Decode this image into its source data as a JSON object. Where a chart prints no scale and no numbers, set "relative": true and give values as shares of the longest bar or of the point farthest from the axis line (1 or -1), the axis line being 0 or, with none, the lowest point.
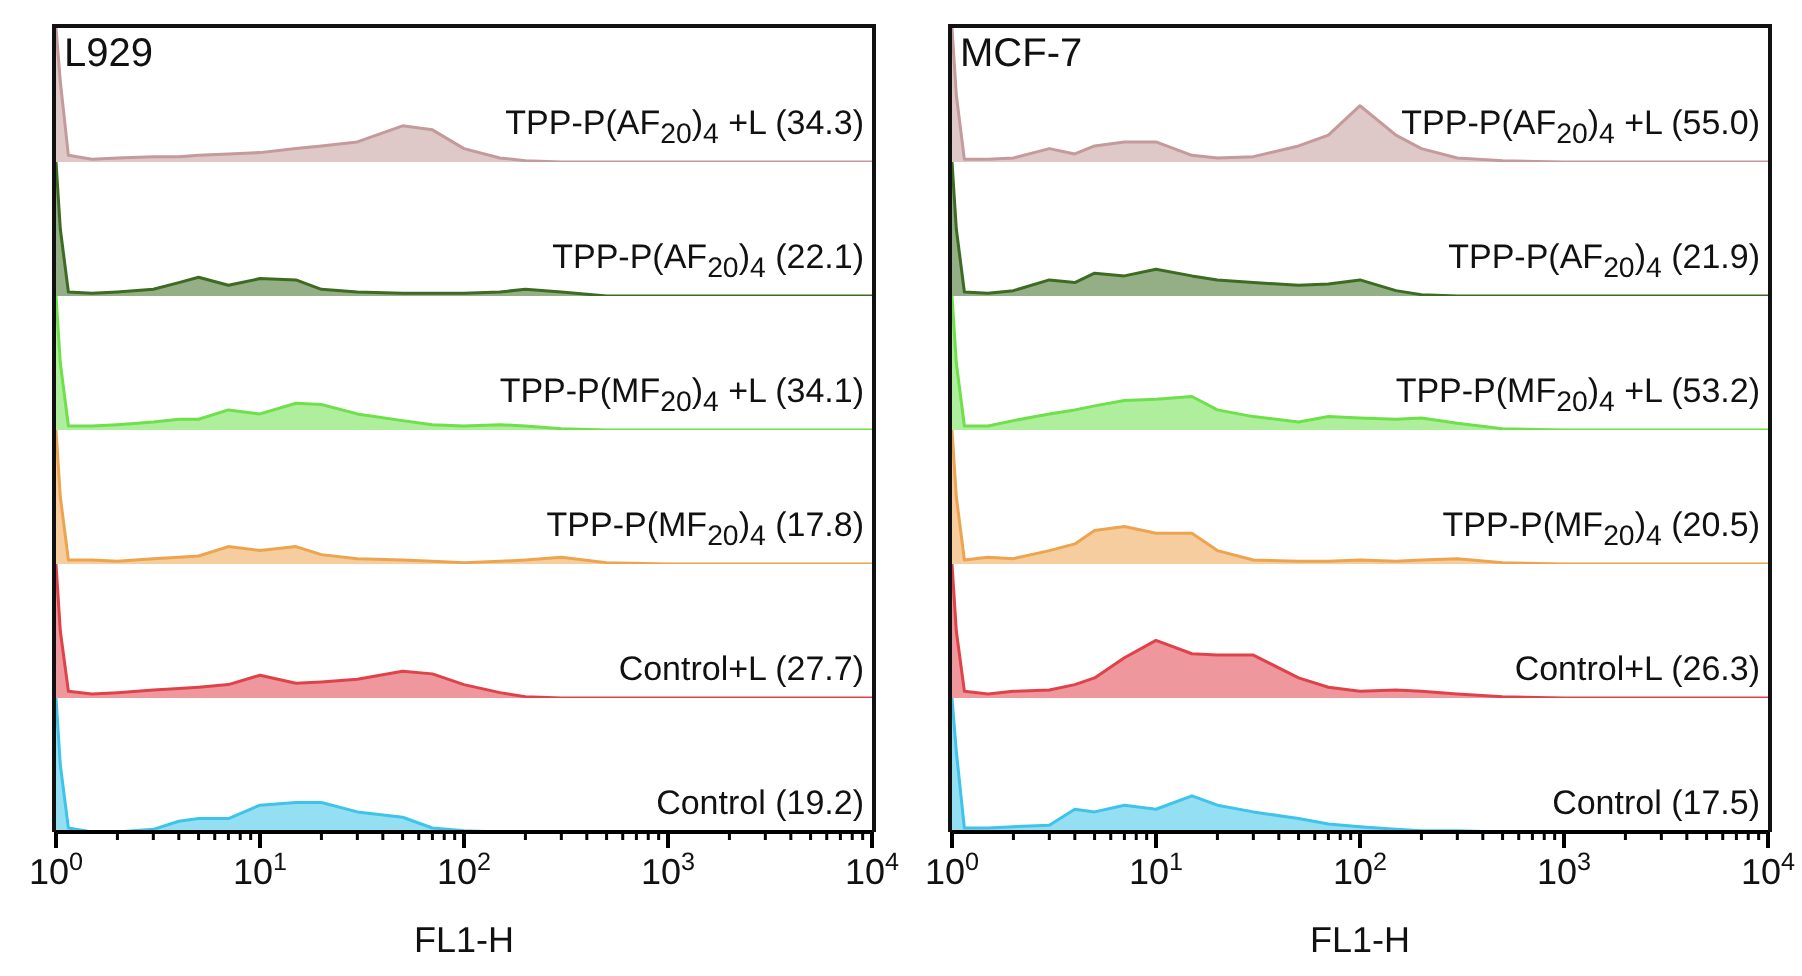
{
  "chart_data": [
    {
      "type": "area",
      "title": "L929",
      "relative": true,
      "log": "x",
      "xlim": [
        1,
        10000
      ],
      "tick_labels": false,
      "x": [
        1,
        1.05,
        1.15,
        1.5,
        2,
        3,
        4,
        5,
        7,
        10,
        15,
        20,
        30,
        50,
        70,
        100,
        150,
        200,
        300,
        500,
        1000,
        10000
      ],
      "series": [
        {
          "name": "TPP-P(AF$_{20}$)$_{4}$ +L (34.3)",
          "color": "#c49a9a",
          "values": [
            1,
            0.6,
            0.05,
            0.02,
            0.03,
            0.04,
            0.04,
            0.05,
            0.06,
            0.07,
            0.1,
            0.12,
            0.15,
            0.27,
            0.24,
            0.1,
            0.03,
            0.01,
            0,
            0,
            0,
            0
          ]
        }
      ]
    },
    {
      "type": "area",
      "relative": true,
      "log": "x",
      "xlim": [
        1,
        10000
      ],
      "tick_labels": false,
      "x": [
        1,
        1.05,
        1.15,
        1.5,
        2,
        3,
        4,
        5,
        7,
        10,
        15,
        20,
        30,
        50,
        70,
        100,
        150,
        200,
        300,
        500,
        1000,
        10000
      ],
      "series": [
        {
          "name": "TPP-P(AF$_{20}$)$_{4}$ (22.1)",
          "color": "#3d6b22",
          "values": [
            1,
            0.5,
            0.03,
            0.02,
            0.03,
            0.05,
            0.1,
            0.14,
            0.08,
            0.13,
            0.12,
            0.05,
            0.03,
            0.02,
            0.02,
            0.02,
            0.03,
            0.05,
            0.03,
            0,
            0,
            0
          ]
        }
      ]
    },
    {
      "type": "area",
      "relative": true,
      "log": "x",
      "xlim": [
        1,
        10000
      ],
      "tick_labels": false,
      "x": [
        1,
        1.05,
        1.15,
        1.5,
        2,
        3,
        4,
        5,
        7,
        10,
        15,
        20,
        30,
        50,
        70,
        100,
        150,
        200,
        300,
        500,
        1000,
        10000
      ],
      "series": [
        {
          "name": "TPP-P(MF$_{20}$)$_{4}$ +L (34.1)",
          "color": "#6ee04a",
          "values": [
            1,
            0.5,
            0.03,
            0.03,
            0.04,
            0.06,
            0.08,
            0.08,
            0.15,
            0.12,
            0.2,
            0.19,
            0.12,
            0.07,
            0.04,
            0.03,
            0.04,
            0.03,
            0.01,
            0,
            0,
            0
          ]
        }
      ]
    },
    {
      "type": "area",
      "relative": true,
      "log": "x",
      "xlim": [
        1,
        10000
      ],
      "tick_labels": false,
      "x": [
        1,
        1.05,
        1.15,
        1.5,
        2,
        3,
        4,
        5,
        7,
        10,
        15,
        20,
        30,
        50,
        70,
        100,
        150,
        200,
        300,
        500,
        1000,
        10000
      ],
      "series": [
        {
          "name": "TPP-P(MF$_{20}$)$_{4}$ (17.8)",
          "color": "#eea44e",
          "values": [
            1,
            0.5,
            0.03,
            0.03,
            0.02,
            0.04,
            0.05,
            0.06,
            0.13,
            0.1,
            0.13,
            0.07,
            0.04,
            0.03,
            0.02,
            0.01,
            0.02,
            0.03,
            0.05,
            0.01,
            0,
            0
          ]
        }
      ]
    },
    {
      "type": "area",
      "relative": true,
      "log": "x",
      "xlim": [
        1,
        10000
      ],
      "tick_labels": false,
      "x": [
        1,
        1.05,
        1.15,
        1.5,
        2,
        3,
        4,
        5,
        7,
        10,
        15,
        20,
        30,
        50,
        70,
        100,
        150,
        200,
        300,
        500,
        1000,
        10000
      ],
      "series": [
        {
          "name": "Control+L (27.7)",
          "color": "#e0424a",
          "values": [
            1,
            0.5,
            0.05,
            0.03,
            0.04,
            0.06,
            0.07,
            0.08,
            0.1,
            0.17,
            0.11,
            0.12,
            0.14,
            0.2,
            0.18,
            0.1,
            0.04,
            0.01,
            0,
            0,
            0,
            0
          ]
        }
      ]
    },
    {
      "type": "area",
      "xlabel": "FL1-H",
      "relative": true,
      "log": "x",
      "xlim": [
        1,
        10000
      ],
      "tick_labels": "x",
      "x": [
        1,
        1.05,
        1.15,
        1.5,
        2,
        3,
        4,
        5,
        7,
        10,
        15,
        20,
        30,
        50,
        70,
        100,
        150,
        200,
        300,
        500,
        1000,
        10000
      ],
      "xticks": [
        {
          "value": 1,
          "label": "10$^{0}$"
        },
        {
          "value": 2,
          "label": null
        },
        {
          "value": 3,
          "label": null
        },
        {
          "value": 4,
          "label": null
        },
        {
          "value": 5,
          "label": null
        },
        {
          "value": 6,
          "label": null
        },
        {
          "value": 7,
          "label": null
        },
        {
          "value": 8,
          "label": null
        },
        {
          "value": 9,
          "label": null
        },
        {
          "value": 10,
          "label": "10$^{1}$"
        },
        {
          "value": 20,
          "label": null
        },
        {
          "value": 30,
          "label": null
        },
        {
          "value": 40,
          "label": null
        },
        {
          "value": 50,
          "label": null
        },
        {
          "value": 60,
          "label": null
        },
        {
          "value": 70,
          "label": null
        },
        {
          "value": 80,
          "label": null
        },
        {
          "value": 90,
          "label": null
        },
        {
          "value": 100,
          "label": "10$^{2}$"
        },
        {
          "value": 200,
          "label": null
        },
        {
          "value": 300,
          "label": null
        },
        {
          "value": 400,
          "label": null
        },
        {
          "value": 500,
          "label": null
        },
        {
          "value": 600,
          "label": null
        },
        {
          "value": 700,
          "label": null
        },
        {
          "value": 800,
          "label": null
        },
        {
          "value": 900,
          "label": null
        },
        {
          "value": 1000,
          "label": "10$^{3}$"
        },
        {
          "value": 2000,
          "label": null
        },
        {
          "value": 3000,
          "label": null
        },
        {
          "value": 4000,
          "label": null
        },
        {
          "value": 5000,
          "label": null
        },
        {
          "value": 6000,
          "label": null
        },
        {
          "value": 7000,
          "label": null
        },
        {
          "value": 8000,
          "label": null
        },
        {
          "value": 9000,
          "label": null
        },
        {
          "value": 10000,
          "label": "10$^{4}$"
        }
      ],
      "series": [
        {
          "name": "Control (19.2)",
          "color": "#3ec4ea",
          "values": [
            1,
            0.5,
            0.03,
            0,
            0,
            0.02,
            0.08,
            0.1,
            0.1,
            0.2,
            0.22,
            0.22,
            0.15,
            0.11,
            0.03,
            0.01,
            0,
            0,
            0,
            0,
            0,
            0
          ]
        }
      ]
    },
    {
      "type": "area",
      "title": "MCF-7",
      "relative": true,
      "log": "x",
      "xlim": [
        1,
        10000
      ],
      "tick_labels": false,
      "x": [
        1,
        1.05,
        1.15,
        1.5,
        2,
        3,
        4,
        5,
        7,
        10,
        15,
        20,
        30,
        50,
        70,
        100,
        150,
        200,
        300,
        500,
        1000,
        10000
      ],
      "series": [
        {
          "name": "TPP-P(AF$_{20}$)$_{4}$ +L (55.0)",
          "color": "#c49a9a",
          "values": [
            1,
            0.5,
            0.02,
            0.02,
            0.03,
            0.1,
            0.06,
            0.12,
            0.15,
            0.15,
            0.05,
            0.03,
            0.04,
            0.12,
            0.2,
            0.42,
            0.2,
            0.1,
            0.03,
            0.01,
            0,
            0
          ]
        }
      ]
    },
    {
      "type": "area",
      "relative": true,
      "log": "x",
      "xlim": [
        1,
        10000
      ],
      "tick_labels": false,
      "x": [
        1,
        1.05,
        1.15,
        1.5,
        2,
        3,
        4,
        5,
        7,
        10,
        15,
        20,
        30,
        50,
        70,
        100,
        150,
        200,
        300,
        500,
        1000,
        10000
      ],
      "series": [
        {
          "name": "TPP-P(AF$_{20}$)$_{4}$ (21.9)",
          "color": "#3d6b22",
          "values": [
            1,
            0.5,
            0.03,
            0.02,
            0.04,
            0.12,
            0.1,
            0.17,
            0.15,
            0.2,
            0.15,
            0.12,
            0.1,
            0.08,
            0.09,
            0.12,
            0.04,
            0.01,
            0,
            0,
            0,
            0
          ]
        }
      ]
    },
    {
      "type": "area",
      "relative": true,
      "log": "x",
      "xlim": [
        1,
        10000
      ],
      "tick_labels": false,
      "x": [
        1,
        1.05,
        1.15,
        1.5,
        2,
        3,
        4,
        5,
        7,
        10,
        15,
        20,
        30,
        50,
        70,
        100,
        150,
        200,
        300,
        500,
        1000,
        10000
      ],
      "series": [
        {
          "name": "TPP-P(MF$_{20}$)$_{4}$ +L (53.2)",
          "color": "#6ee04a",
          "values": [
            1,
            0.5,
            0.03,
            0.03,
            0.07,
            0.12,
            0.15,
            0.18,
            0.22,
            0.23,
            0.25,
            0.15,
            0.1,
            0.06,
            0.1,
            0.09,
            0.08,
            0.09,
            0.05,
            0.01,
            0,
            0
          ]
        }
      ]
    },
    {
      "type": "area",
      "relative": true,
      "log": "x",
      "xlim": [
        1,
        10000
      ],
      "tick_labels": false,
      "x": [
        1,
        1.05,
        1.15,
        1.5,
        2,
        3,
        4,
        5,
        7,
        10,
        15,
        20,
        30,
        50,
        70,
        100,
        150,
        200,
        300,
        500,
        1000,
        10000
      ],
      "series": [
        {
          "name": "TPP-P(MF$_{20}$)$_{4}$ (20.5)",
          "color": "#eea44e",
          "values": [
            1,
            0.5,
            0.03,
            0.05,
            0.04,
            0.1,
            0.15,
            0.25,
            0.28,
            0.23,
            0.23,
            0.1,
            0.03,
            0.02,
            0.02,
            0.03,
            0.02,
            0.03,
            0.04,
            0.01,
            0,
            0
          ]
        }
      ]
    },
    {
      "type": "area",
      "relative": true,
      "log": "x",
      "xlim": [
        1,
        10000
      ],
      "tick_labels": false,
      "x": [
        1,
        1.05,
        1.15,
        1.5,
        2,
        3,
        4,
        5,
        7,
        10,
        15,
        20,
        30,
        50,
        70,
        100,
        150,
        200,
        300,
        500,
        1000,
        10000
      ],
      "series": [
        {
          "name": "Control+L (26.3)",
          "color": "#e0424a",
          "values": [
            1,
            0.5,
            0.05,
            0.03,
            0.05,
            0.06,
            0.1,
            0.15,
            0.3,
            0.43,
            0.33,
            0.32,
            0.32,
            0.15,
            0.08,
            0.05,
            0.06,
            0.05,
            0.03,
            0.01,
            0,
            0
          ]
        }
      ]
    },
    {
      "type": "area",
      "xlabel": "FL1-H",
      "relative": true,
      "log": "x",
      "xlim": [
        1,
        10000
      ],
      "tick_labels": "x",
      "x": [
        1,
        1.05,
        1.15,
        1.5,
        2,
        3,
        4,
        5,
        7,
        10,
        15,
        20,
        30,
        50,
        70,
        100,
        150,
        200,
        300,
        500,
        1000,
        10000
      ],
      "xticks": [
        {
          "value": 1,
          "label": "10$^{0}$"
        },
        {
          "value": 2,
          "label": null
        },
        {
          "value": 3,
          "label": null
        },
        {
          "value": 4,
          "label": null
        },
        {
          "value": 5,
          "label": null
        },
        {
          "value": 6,
          "label": null
        },
        {
          "value": 7,
          "label": null
        },
        {
          "value": 8,
          "label": null
        },
        {
          "value": 9,
          "label": null
        },
        {
          "value": 10,
          "label": "10$^{1}$"
        },
        {
          "value": 20,
          "label": null
        },
        {
          "value": 30,
          "label": null
        },
        {
          "value": 40,
          "label": null
        },
        {
          "value": 50,
          "label": null
        },
        {
          "value": 60,
          "label": null
        },
        {
          "value": 70,
          "label": null
        },
        {
          "value": 80,
          "label": null
        },
        {
          "value": 90,
          "label": null
        },
        {
          "value": 100,
          "label": "10$^{2}$"
        },
        {
          "value": 200,
          "label": null
        },
        {
          "value": 300,
          "label": null
        },
        {
          "value": 400,
          "label": null
        },
        {
          "value": 500,
          "label": null
        },
        {
          "value": 600,
          "label": null
        },
        {
          "value": 700,
          "label": null
        },
        {
          "value": 800,
          "label": null
        },
        {
          "value": 900,
          "label": null
        },
        {
          "value": 1000,
          "label": "10$^{3}$"
        },
        {
          "value": 2000,
          "label": null
        },
        {
          "value": 3000,
          "label": null
        },
        {
          "value": 4000,
          "label": null
        },
        {
          "value": 5000,
          "label": null
        },
        {
          "value": 6000,
          "label": null
        },
        {
          "value": 7000,
          "label": null
        },
        {
          "value": 8000,
          "label": null
        },
        {
          "value": 9000,
          "label": null
        },
        {
          "value": 10000,
          "label": "10$^{4}$"
        }
      ],
      "series": [
        {
          "name": "Control (17.5)",
          "color": "#3ec4ea",
          "values": [
            1,
            0.6,
            0.03,
            0.03,
            0.04,
            0.05,
            0.17,
            0.15,
            0.2,
            0.17,
            0.27,
            0.2,
            0.15,
            0.1,
            0.06,
            0.04,
            0.02,
            0.01,
            0.01,
            0,
            0,
            0
          ]
        }
      ]
    }
  ]
}
